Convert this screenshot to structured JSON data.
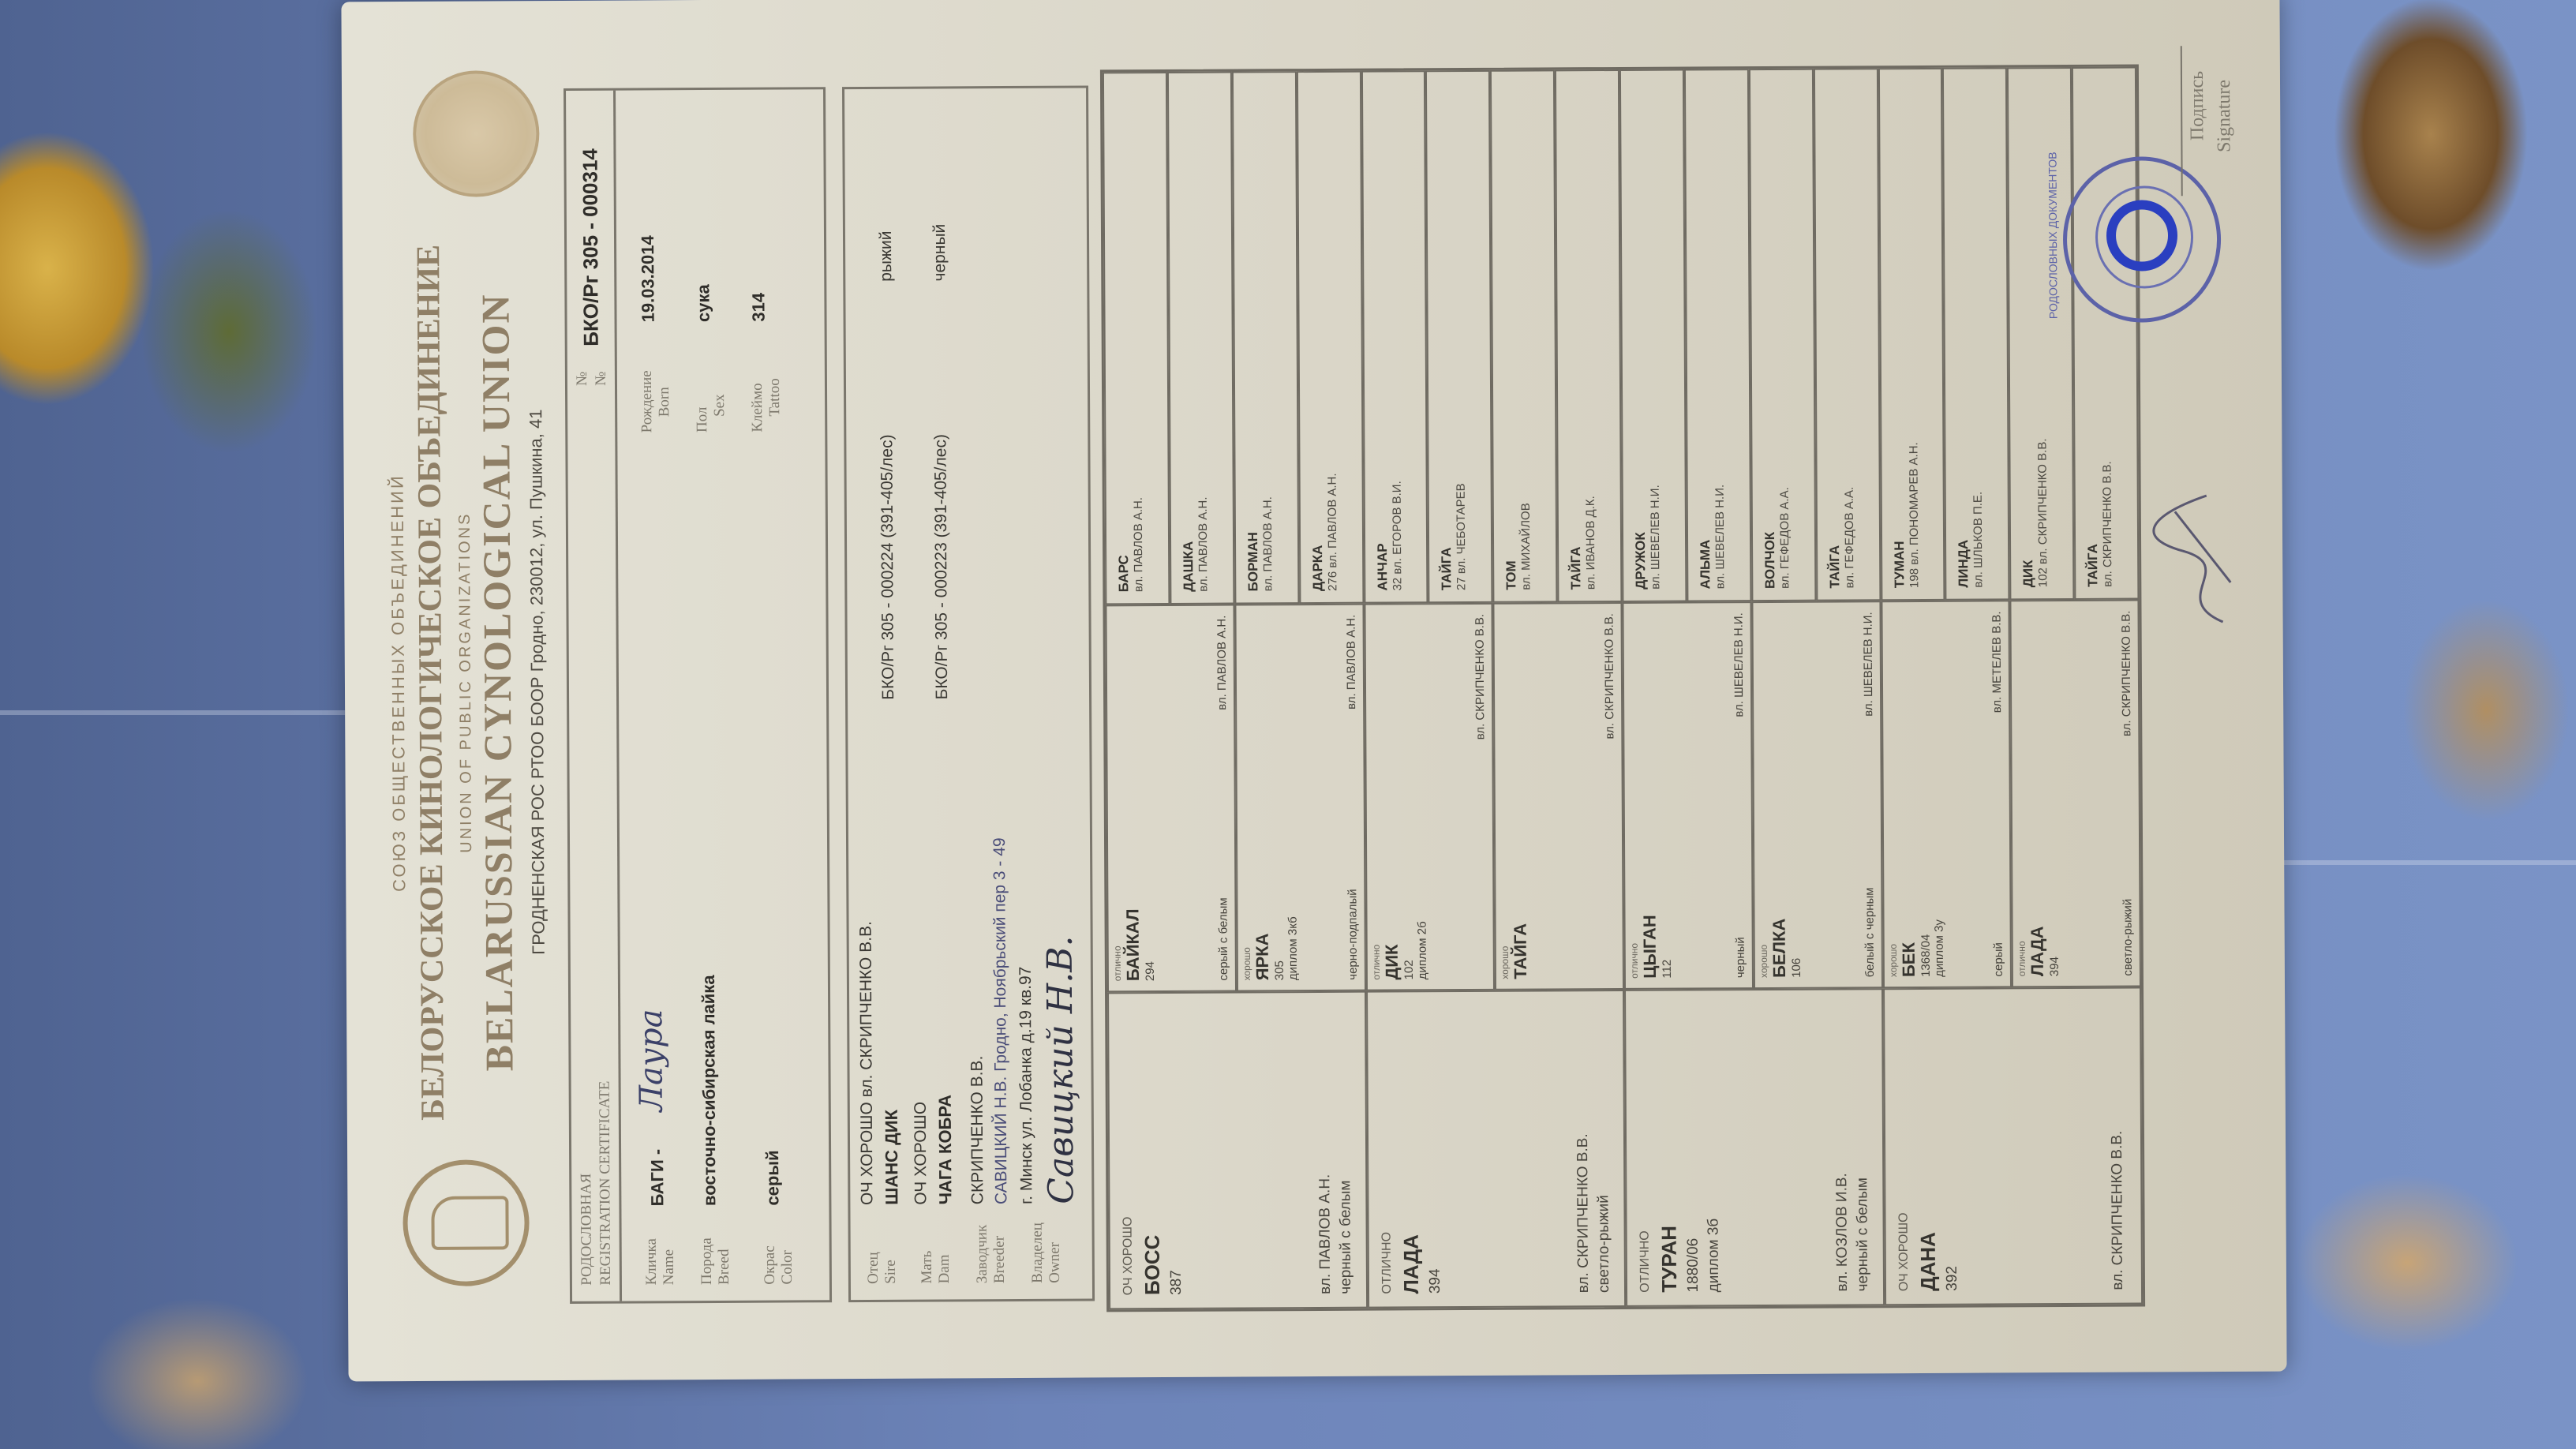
{
  "header": {
    "union_small": "СОЮЗ ОБЩЕСТВЕННЫХ ОБЪЕДИНЕНИЙ",
    "title_ru": "БЕЛОРУССКОЕ КИНОЛОГИЧЕСКОЕ ОБЪЕДИНЕНИЕ",
    "union_small_en": "UNION OF PUBLIC ORGANIZATIONS",
    "title_en": "BELARUSSIAN CYNOLOGICAL UNION",
    "address": "ГРОДНЕНСКАЯ РОС РТОО БООР Гродно, 230012, ул. Пушкина, 41"
  },
  "certificate": {
    "title_ru": "РОДОСЛОВНАЯ",
    "title_en": "REGISTRATION CERTIFICATE",
    "number_label_ru": "№",
    "number_label_en": "№",
    "number": "БКО/Рг 305 - 000314",
    "name_label_ru": "Кличка",
    "name_label_en": "Name",
    "name": "БАГИ -",
    "name_handwritten": "Лаура",
    "breed_label_ru": "Порода",
    "breed_label_en": "Breed",
    "breed": "восточно-сибирская лайка",
    "color_label_ru": "Окрас",
    "color_label_en": "Color",
    "color": "серый",
    "born_label_ru": "Рождение",
    "born_label_en": "Born",
    "born": "19.03.2014",
    "sex_label_ru": "Пол",
    "sex_label_en": "Sex",
    "sex": "сука",
    "tattoo_label_ru": "Клеймо",
    "tattoo_label_en": "Tattoo",
    "tattoo": "314"
  },
  "parents": {
    "sire_label_ru": "Отец",
    "sire_label_en": "Sire",
    "sire_grade": "ОЧ ХОРОШО вл. СКРИПЧЕНКО В.В.",
    "sire_name": "ШАНС ДИК",
    "sire_number": "БКО/Рг 305 - 000224 (391-405/лес)",
    "sire_color": "рыжий",
    "dam_label_ru": "Мать",
    "dam_label_en": "Dam",
    "dam_grade": "ОЧ ХОРОШО",
    "dam_name": "ЧАГА КОБРА",
    "dam_number": "БКО/Рг 305 - 000223 (391-405/лес)",
    "dam_color": "черный",
    "breeder_label_ru": "Заводчик",
    "breeder_label_en": "Breeder",
    "breeder": "СКРИПЧЕНКО В.В.",
    "breeder_overprint": "САВИЦКИЙ Н.В. Гродно, Ноябрьский пер 3 - 49",
    "owner_label_ru": "Владелец",
    "owner_label_en": "Owner",
    "owner_address": "г. Минск ул. Лобанка д.19 кв.97",
    "owner_handwritten": "Савицкий Н.В."
  },
  "pedigree": {
    "grandparents": [
      {
        "grade": "ОЧ ХОРОШО",
        "name": "БОСС",
        "number": "387",
        "extra": "",
        "owner": "вл. ПАВЛОВ А.Н.",
        "color": "черный с белым"
      },
      {
        "grade": "ОТЛИЧНО",
        "name": "ЛАДА",
        "number": "394",
        "extra": "",
        "owner": "вл. СКРИПЧЕНКО В.В.",
        "color": "светло-рыжий"
      },
      {
        "grade": "ОТЛИЧНО",
        "name": "ТУРАН",
        "number": "1880/06",
        "extra": "диплом 3б",
        "owner": "вл. КОЗЛОВ И.В.",
        "color": "черный с белым"
      },
      {
        "grade": "ОЧ ХОРОШО",
        "name": "ДАНА",
        "number": "392",
        "extra": "",
        "owner": "вл. СКРИПЧЕНКО В.В.",
        "color": ""
      }
    ],
    "great_grandparents": [
      {
        "grade": "отлично",
        "name": "БАЙКАЛ",
        "number": "294",
        "extra": "",
        "color": "серый с белым",
        "owner": "вл. ПАВЛОВ А.Н."
      },
      {
        "grade": "хорошо",
        "name": "ЯРКА",
        "number": "305",
        "extra": "диплом 3кб",
        "color": "черно-подпалый",
        "owner": "вл. ПАВЛОВ А.Н."
      },
      {
        "grade": "отлично",
        "name": "ДИК",
        "number": "102",
        "extra": "диплом 2б",
        "color": "",
        "owner": "вл. СКРИПЧЕНКО В.В."
      },
      {
        "grade": "хорошо",
        "name": "ТАЙГА",
        "number": "",
        "extra": "",
        "color": "",
        "owner": "вл. СКРИПЧЕНКО В.В."
      },
      {
        "grade": "отлично",
        "name": "ЦЫГАН",
        "number": "112",
        "extra": "",
        "color": "черный",
        "owner": "вл. ШЕВЕЛЕВ Н.И."
      },
      {
        "grade": "хорошо",
        "name": "БЕЛКА",
        "number": "106",
        "extra": "",
        "color": "белый с черным",
        "owner": "вл. ШЕВЕЛЕВ Н.И."
      },
      {
        "grade": "хорошо",
        "name": "БЕК",
        "number": "1368/04",
        "extra": "диплом 3у",
        "color": "серый",
        "owner": "вл. МЕТЕЛЕВ В.В."
      },
      {
        "grade": "отлично",
        "name": "ЛАДА",
        "number": "394",
        "extra": "",
        "color": "светло-рыжий",
        "owner": "вл. СКРИПЧЕНКО В.В."
      }
    ],
    "great_great_grandparents": [
      {
        "name": "БАРС",
        "info": "вл. ПАВЛОВ А.Н."
      },
      {
        "name": "ДАШКА",
        "info": "вл. ПАВЛОВ А.Н."
      },
      {
        "name": "БОРМАН",
        "info": "вл. ПАВЛОВ А.Н."
      },
      {
        "name": "ДАРКА",
        "info": "276 вл. ПАВЛОВ А.Н."
      },
      {
        "name": "АНЧАР",
        "info": "32 вл. ЕГОРОВ В.И."
      },
      {
        "name": "ТАЙГА",
        "info": "27 вл. ЧЕБОТАРЕВ"
      },
      {
        "name": "ТОМ",
        "info": "вл. МИХАЙЛОВ"
      },
      {
        "name": "ТАЙГА",
        "info": "вл. ИВАНОВ Д.К."
      },
      {
        "name": "ДРУЖОК",
        "info": "вл. ШЕВЕЛЕВ Н.И."
      },
      {
        "name": "АЛЬМА",
        "info": "вл. ШЕВЕЛЕВ Н.И."
      },
      {
        "name": "ВОЛЧОК",
        "info": "вл. ГЕФЕДОВ А.А."
      },
      {
        "name": "ТАЙГА",
        "info": "вл. ГЕФЕДОВ А.А."
      },
      {
        "name": "ТУМАН",
        "info": "198 вл. ПОНОМАРЕВ А.Н."
      },
      {
        "name": "ЛИНДА",
        "info": "вл. ШЛЬКОВ П.Е."
      },
      {
        "name": "ДИК",
        "info": "102 вл. СКРИПЧЕНКО В.В."
      },
      {
        "name": "ТАЙГА",
        "info": "вл. СКРИПЧЕНКО В.В."
      }
    ]
  },
  "footer": {
    "signature_label_ru": "Подпись",
    "signature_label_en": "Signature",
    "stamp_text": "РОДОСЛОВНЫХ ДОКУМЕНТОВ"
  },
  "colors": {
    "stamp": "#2a3fc0",
    "paper": "#dad6c8",
    "background": "#6d84b9"
  }
}
